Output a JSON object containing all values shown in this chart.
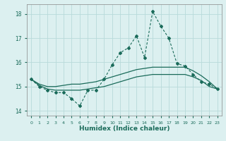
{
  "x": [
    0,
    1,
    2,
    3,
    4,
    5,
    6,
    7,
    8,
    9,
    10,
    11,
    12,
    13,
    14,
    15,
    16,
    17,
    18,
    19,
    20,
    21,
    22,
    23
  ],
  "line_main": [
    15.3,
    15.0,
    14.85,
    14.75,
    14.75,
    14.5,
    14.2,
    14.85,
    14.85,
    15.3,
    15.9,
    16.4,
    16.6,
    17.1,
    16.2,
    18.1,
    17.5,
    17.0,
    15.95,
    15.85,
    15.5,
    15.2,
    15.1,
    14.9
  ],
  "line_upper": [
    15.3,
    15.1,
    15.0,
    15.0,
    15.05,
    15.1,
    15.1,
    15.15,
    15.2,
    15.3,
    15.4,
    15.5,
    15.6,
    15.7,
    15.75,
    15.8,
    15.8,
    15.8,
    15.8,
    15.8,
    15.65,
    15.45,
    15.2,
    14.9
  ],
  "line_lower": [
    15.3,
    15.05,
    14.9,
    14.85,
    14.85,
    14.85,
    14.85,
    14.9,
    14.95,
    15.0,
    15.1,
    15.2,
    15.3,
    15.4,
    15.45,
    15.5,
    15.5,
    15.5,
    15.5,
    15.5,
    15.4,
    15.25,
    15.0,
    14.9
  ],
  "color": "#1A6B5A",
  "bg_color": "#DCF0F0",
  "grid_color": "#B8DADA",
  "xlabel": "Humidex (Indice chaleur)",
  "ylim": [
    13.8,
    18.4
  ],
  "xlim": [
    -0.5,
    23.5
  ],
  "yticks": [
    14,
    15,
    16,
    17,
    18
  ],
  "xticks": [
    0,
    1,
    2,
    3,
    4,
    5,
    6,
    7,
    8,
    9,
    10,
    11,
    12,
    13,
    14,
    15,
    16,
    17,
    18,
    19,
    20,
    21,
    22,
    23
  ]
}
